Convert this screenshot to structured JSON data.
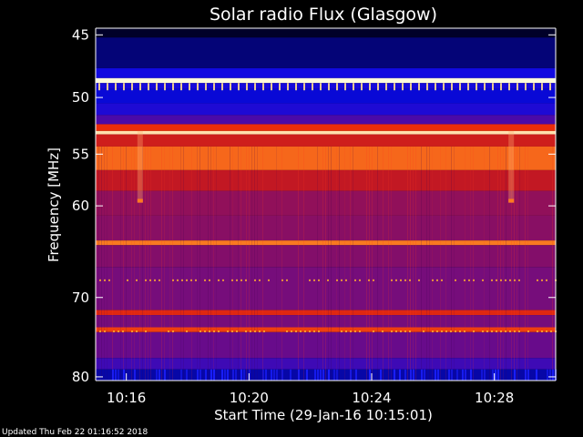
{
  "chart_data": {
    "type": "heatmap",
    "title": "Solar radio Flux (Glasgow)",
    "xlabel": "Start Time (29-Jan-16 10:15:01)",
    "ylabel": "Frequency [MHz]",
    "x_ticks": [
      "10:16",
      "10:20",
      "10:24",
      "10:28"
    ],
    "x_tick_values_min": [
      1.0,
      5.0,
      9.0,
      13.0
    ],
    "xlim_min": [
      0,
      15
    ],
    "y_ticks": [
      45,
      50,
      55,
      60,
      70,
      80
    ],
    "ylim": [
      44.5,
      80.5
    ],
    "y_scale": "log",
    "bands_mhz": [
      {
        "from": 44.5,
        "to": 45.2,
        "level": 0.0
      },
      {
        "from": 45.2,
        "to": 47.6,
        "level": 0.05
      },
      {
        "from": 47.6,
        "to": 48.4,
        "level": 0.13
      },
      {
        "from": 48.4,
        "to": 48.8,
        "level": 1.0
      },
      {
        "from": 48.8,
        "to": 49.3,
        "level": 0.14
      },
      {
        "from": 49.3,
        "to": 50.5,
        "level": 0.11
      },
      {
        "from": 50.5,
        "to": 51.5,
        "level": 0.15
      },
      {
        "from": 51.5,
        "to": 52.3,
        "level": 0.22
      },
      {
        "from": 52.3,
        "to": 52.9,
        "level": 0.62
      },
      {
        "from": 52.9,
        "to": 53.2,
        "level": 0.95
      },
      {
        "from": 53.2,
        "to": 54.3,
        "level": 0.52
      },
      {
        "from": 54.3,
        "to": 56.5,
        "level": 0.72
      },
      {
        "from": 56.5,
        "to": 58.5,
        "level": 0.48
      },
      {
        "from": 58.5,
        "to": 61.0,
        "level": 0.36
      },
      {
        "from": 61.0,
        "to": 63.6,
        "level": 0.34
      },
      {
        "from": 63.6,
        "to": 64.1,
        "level": 0.75
      },
      {
        "from": 64.1,
        "to": 66.5,
        "level": 0.33
      },
      {
        "from": 66.5,
        "to": 71.5,
        "level": 0.3
      },
      {
        "from": 71.5,
        "to": 72.1,
        "level": 0.58
      },
      {
        "from": 72.1,
        "to": 73.6,
        "level": 0.3
      },
      {
        "from": 73.6,
        "to": 74.2,
        "level": 0.65
      },
      {
        "from": 74.2,
        "to": 77.5,
        "level": 0.27
      },
      {
        "from": 77.5,
        "to": 79.0,
        "level": 0.2
      },
      {
        "from": 79.0,
        "to": 80.5,
        "level": 0.08
      }
    ],
    "colorbar": "black-blue-red-yellow-white",
    "grid": false
  },
  "footer": {
    "updated": "Updated Thu Feb 22 01:16:52 2018"
  }
}
